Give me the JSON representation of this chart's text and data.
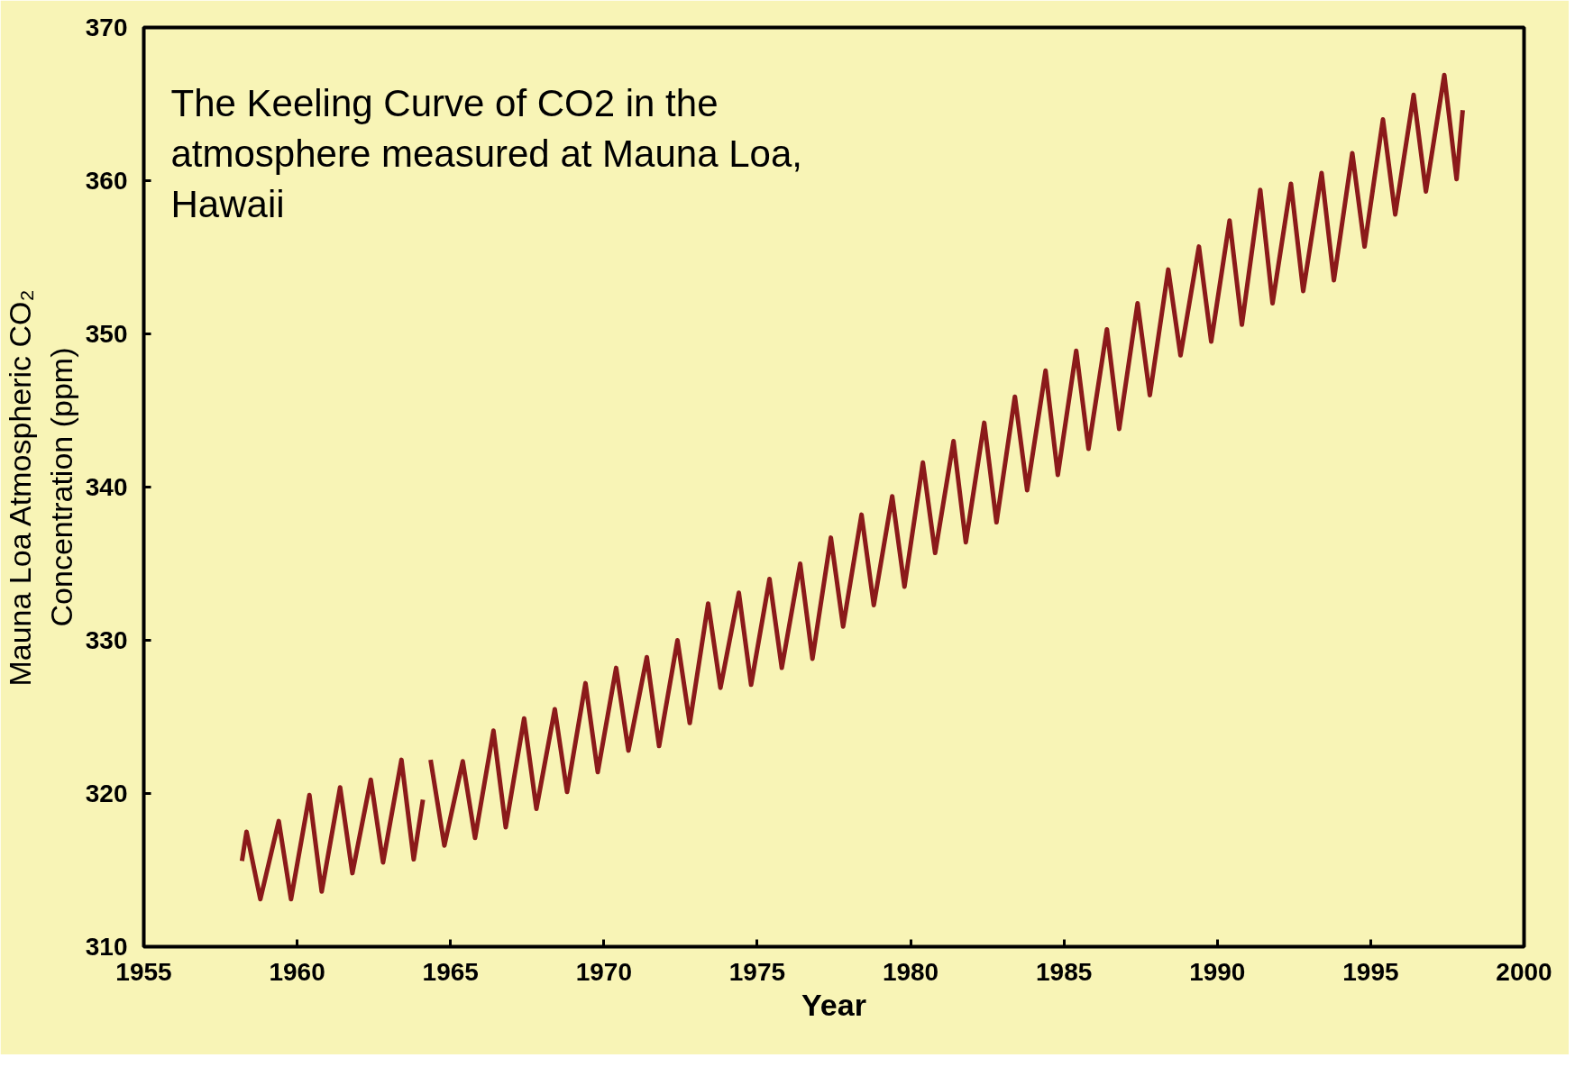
{
  "chart_data": {
    "type": "line",
    "xlabel": "Year",
    "ylabel": "Mauna Loa Atmospheric CO₂\nConcentration (ppm)",
    "annotations": [
      "The Keeling Curve of CO2 in the atmosphere measured at Mauna Loa, Hawaii"
    ],
    "xlim": [
      1955,
      2000
    ],
    "xticks": [
      1955,
      1960,
      1965,
      1970,
      1975,
      1980,
      1985,
      1990,
      1995,
      2000
    ],
    "ylim": [
      310,
      370
    ],
    "yticks": [
      310,
      320,
      330,
      340,
      350,
      360,
      370
    ],
    "grid": false,
    "marker": "none",
    "line_style": "solid",
    "series": [
      {
        "color": "#8b1a1a",
        "x": [
          1958.2,
          1958.35,
          1958.8,
          1959.4,
          1959.8,
          1960.4,
          1960.8,
          1961.4,
          1961.8,
          1962.4,
          1962.8,
          1963.4,
          1963.8,
          1964.1,
          1964.2,
          1964.35,
          1964.8,
          1965.4,
          1965.8,
          1966.4,
          1966.8,
          1967.4,
          1967.8,
          1968.4,
          1968.8,
          1969.4,
          1969.8,
          1970.4,
          1970.8,
          1971.4,
          1971.8,
          1972.4,
          1972.8,
          1973.4,
          1973.8,
          1974.4,
          1974.8,
          1975.4,
          1975.8,
          1976.4,
          1976.8,
          1977.4,
          1977.8,
          1978.4,
          1978.8,
          1979.4,
          1979.8,
          1980.4,
          1980.8,
          1981.4,
          1981.8,
          1982.4,
          1982.8,
          1983.4,
          1983.8,
          1984.4,
          1984.8,
          1985.4,
          1985.8,
          1986.4,
          1986.8,
          1987.4,
          1987.8,
          1988.4,
          1988.8,
          1989.4,
          1989.8,
          1990.4,
          1990.8,
          1991.4,
          1991.8,
          1992.4,
          1992.8,
          1993.4,
          1993.8,
          1994.4,
          1994.8,
          1995.4,
          1995.8,
          1996.4,
          1996.8,
          1997.4,
          1997.8,
          1998.0
        ],
        "values": [
          315.6,
          317.5,
          313.1,
          318.2,
          313.1,
          319.9,
          313.6,
          320.4,
          314.8,
          320.9,
          315.5,
          322.2,
          315.7,
          319.6,
          null,
          322.2,
          316.6,
          322.1,
          317.1,
          324.1,
          317.8,
          324.9,
          319.0,
          325.5,
          320.1,
          327.2,
          321.4,
          328.2,
          322.8,
          328.9,
          323.1,
          330.0,
          324.6,
          332.4,
          326.9,
          333.1,
          327.1,
          334.0,
          328.2,
          335.0,
          328.8,
          336.7,
          330.9,
          338.2,
          332.3,
          339.4,
          333.5,
          341.6,
          335.7,
          343.0,
          336.4,
          344.2,
          337.7,
          345.9,
          339.8,
          347.6,
          340.8,
          348.9,
          342.5,
          350.3,
          343.8,
          352.0,
          346.0,
          354.2,
          348.6,
          355.7,
          349.5,
          357.4,
          350.6,
          359.4,
          352.0,
          359.8,
          352.8,
          360.5,
          353.5,
          361.8,
          355.7,
          364.0,
          357.8,
          365.6,
          359.3,
          366.9,
          360.1,
          364.6
        ]
      }
    ]
  }
}
